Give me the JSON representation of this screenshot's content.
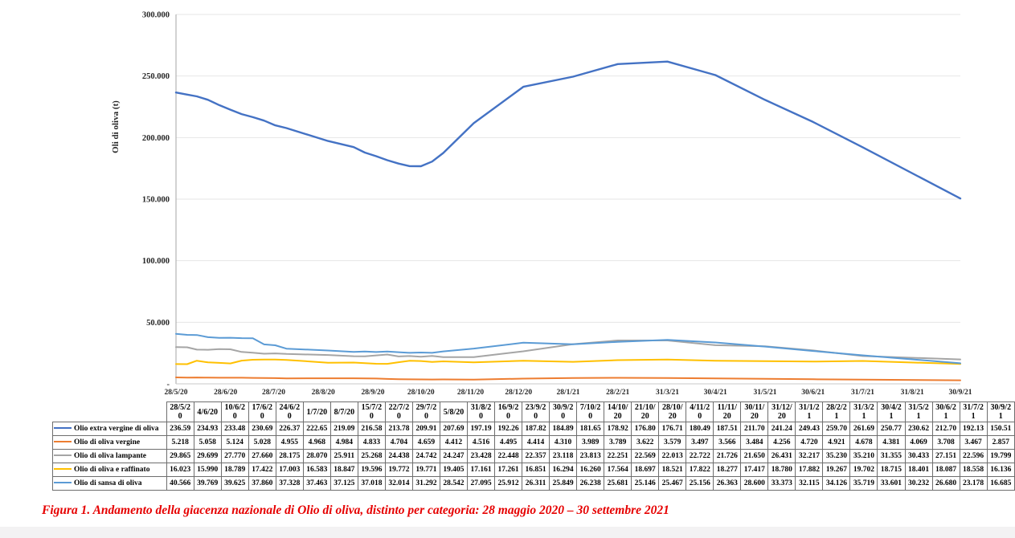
{
  "figure": {
    "caption": "Figura 1. Andamento della giacenza nazionale di Olio di oliva, distinto per categoria: 28 maggio 2020 – 30 settembre 2021"
  },
  "chart_data": {
    "type": "line",
    "title": "",
    "xlabel": "",
    "ylabel": "Oli di oliva (t)",
    "ylim": [
      0,
      300000
    ],
    "grid": "horizontal",
    "legend_position": "table-left",
    "y_ticks": [
      {
        "label": "300.000",
        "value": 300000
      },
      {
        "label": "250.000",
        "value": 250000
      },
      {
        "label": "200.000",
        "value": 200000
      },
      {
        "label": "150.000",
        "value": 150000
      },
      {
        "label": "100.000",
        "value": 100000
      },
      {
        "label": "50.000",
        "value": 50000
      },
      {
        "label": "-",
        "value": 0
      }
    ],
    "x_ticks": [
      {
        "label": "28/5/20",
        "date": "2020-05-28"
      },
      {
        "label": "28/6/20",
        "date": "2020-06-28"
      },
      {
        "label": "28/7/20",
        "date": "2020-07-28"
      },
      {
        "label": "28/8/20",
        "date": "2020-08-28"
      },
      {
        "label": "28/9/20",
        "date": "2020-09-28"
      },
      {
        "label": "28/10/20",
        "date": "2020-10-28"
      },
      {
        "label": "28/11/20",
        "date": "2020-11-28"
      },
      {
        "label": "28/12/20",
        "date": "2020-12-28"
      },
      {
        "label": "28/1/21",
        "date": "2021-01-28"
      },
      {
        "label": "28/2/21",
        "date": "2021-02-28"
      },
      {
        "label": "31/3/21",
        "date": "2021-03-31"
      },
      {
        "label": "30/4/21",
        "date": "2021-04-30"
      },
      {
        "label": "31/5/21",
        "date": "2021-05-31"
      },
      {
        "label": "30/6/21",
        "date": "2021-06-30"
      },
      {
        "label": "31/7/21",
        "date": "2021-07-31"
      },
      {
        "label": "31/8/21",
        "date": "2021-08-31"
      },
      {
        "label": "30/9/21",
        "date": "2021-09-30"
      }
    ],
    "dates": [
      "2020-05-28",
      "2020-06-04",
      "2020-06-10",
      "2020-06-17",
      "2020-06-24",
      "2020-07-01",
      "2020-07-08",
      "2020-07-15",
      "2020-07-22",
      "2020-07-29",
      "2020-08-05",
      "2020-08-31",
      "2020-09-16",
      "2020-09-23",
      "2020-09-30",
      "2020-10-07",
      "2020-10-14",
      "2020-10-21",
      "2020-10-28",
      "2020-11-04",
      "2020-11-11",
      "2020-11-30",
      "2020-12-31",
      "2021-01-31",
      "2021-02-28",
      "2021-03-31",
      "2021-04-30",
      "2021-05-31",
      "2021-06-30",
      "2021-07-31",
      "2021-09-30"
    ],
    "series": [
      {
        "name": "Olio extra vergine di oliva",
        "color": "#4472C4",
        "values": [
          236590,
          234930,
          233480,
          230690,
          226370,
          222650,
          219090,
          216580,
          213780,
          209910,
          207690,
          197190,
          192260,
          187820,
          184890,
          181650,
          178920,
          176800,
          176710,
          180490,
          187510,
          211700,
          241240,
          249430,
          259700,
          261690,
          250770,
          230620,
          212700,
          192130,
          150510
        ]
      },
      {
        "name": "Olio di oliva vergine",
        "color": "#ED7D31",
        "values": [
          5218,
          5058,
          5124,
          5028,
          4955,
          4968,
          4984,
          4833,
          4704,
          4659,
          4412,
          4516,
          4495,
          4414,
          4310,
          3989,
          3789,
          3622,
          3579,
          3497,
          3566,
          3484,
          4256,
          4720,
          4921,
          4678,
          4381,
          4069,
          3708,
          3467,
          2857
        ]
      },
      {
        "name": "Olio di oliva lampante",
        "color": "#A5A5A5",
        "values": [
          29865,
          29699,
          27770,
          27660,
          28175,
          28070,
          25911,
          25268,
          24438,
          24742,
          24247,
          23428,
          22448,
          22357,
          23118,
          23813,
          22251,
          22569,
          22013,
          22722,
          21726,
          21650,
          26431,
          32217,
          35230,
          35210,
          31355,
          30433,
          27151,
          22596,
          19799
        ]
      },
      {
        "name": "Olio di oliva e raffinato",
        "color": "#FFC000",
        "values": [
          16023,
          15990,
          18789,
          17422,
          17003,
          16583,
          18847,
          19596,
          19772,
          19771,
          19405,
          17161,
          17261,
          16851,
          16294,
          16260,
          17564,
          18697,
          18521,
          17822,
          18277,
          17417,
          18780,
          17882,
          19267,
          19702,
          18715,
          18401,
          18087,
          18558,
          16136
        ]
      },
      {
        "name": "Olio di sansa di oliva",
        "color": "#5B9BD5",
        "values": [
          40566,
          39769,
          39625,
          37860,
          37328,
          37463,
          37125,
          37018,
          32014,
          31292,
          28542,
          27095,
          25912,
          26311,
          25849,
          26238,
          25681,
          25146,
          25467,
          25156,
          26363,
          28600,
          33373,
          32115,
          34126,
          35719,
          33601,
          30232,
          26680,
          23178,
          16685
        ]
      }
    ]
  },
  "table": {
    "corner": "",
    "columns": [
      "28/5/20",
      "4/6/20",
      "10/6/20",
      "17/6/20",
      "24/6/20",
      "1/7/20",
      "8/7/20",
      "15/7/20",
      "22/7/20",
      "29/7/20",
      "5/8/20",
      "31/8/20",
      "16/9/20",
      "23/9/20",
      "30/9/20",
      "7/10/20",
      "14/10/20",
      "21/10/20",
      "28/10/20",
      "4/11/20",
      "11/11/20",
      "30/11/20",
      "31/12/20",
      "31/1/21",
      "28/2/21",
      "31/3/21",
      "30/4/21",
      "31/5/21",
      "30/6/21",
      "31/7/21",
      "30/9/21"
    ],
    "rows": [
      {
        "label": "Olio extra vergine di oliva",
        "color": "#4472C4",
        "values": [
          "236.59",
          "234.93",
          "233.48",
          "230.69",
          "226.37",
          "222.65",
          "219.09",
          "216.58",
          "213.78",
          "209.91",
          "207.69",
          "197.19",
          "192.26",
          "187.82",
          "184.89",
          "181.65",
          "178.92",
          "176.80",
          "176.71",
          "180.49",
          "187.51",
          "211.70",
          "241.24",
          "249.43",
          "259.70",
          "261.69",
          "250.77",
          "230.62",
          "212.70",
          "192.13",
          "150.51"
        ]
      },
      {
        "label": "Olio di oliva vergine",
        "color": "#ED7D31",
        "values": [
          "5.218",
          "5.058",
          "5.124",
          "5.028",
          "4.955",
          "4.968",
          "4.984",
          "4.833",
          "4.704",
          "4.659",
          "4.412",
          "4.516",
          "4.495",
          "4.414",
          "4.310",
          "3.989",
          "3.789",
          "3.622",
          "3.579",
          "3.497",
          "3.566",
          "3.484",
          "4.256",
          "4.720",
          "4.921",
          "4.678",
          "4.381",
          "4.069",
          "3.708",
          "3.467",
          "2.857"
        ]
      },
      {
        "label": "Olio di oliva lampante",
        "color": "#A5A5A5",
        "values": [
          "29.865",
          "29.699",
          "27.770",
          "27.660",
          "28.175",
          "28.070",
          "25.911",
          "25.268",
          "24.438",
          "24.742",
          "24.247",
          "23.428",
          "22.448",
          "22.357",
          "23.118",
          "23.813",
          "22.251",
          "22.569",
          "22.013",
          "22.722",
          "21.726",
          "21.650",
          "26.431",
          "32.217",
          "35.230",
          "35.210",
          "31.355",
          "30.433",
          "27.151",
          "22.596",
          "19.799"
        ]
      },
      {
        "label": "Olio di oliva e raffinato",
        "color": "#FFC000",
        "values": [
          "16.023",
          "15.990",
          "18.789",
          "17.422",
          "17.003",
          "16.583",
          "18.847",
          "19.596",
          "19.772",
          "19.771",
          "19.405",
          "17.161",
          "17.261",
          "16.851",
          "16.294",
          "16.260",
          "17.564",
          "18.697",
          "18.521",
          "17.822",
          "18.277",
          "17.417",
          "18.780",
          "17.882",
          "19.267",
          "19.702",
          "18.715",
          "18.401",
          "18.087",
          "18.558",
          "16.136"
        ]
      },
      {
        "label": "Olio di sansa di oliva",
        "color": "#5B9BD5",
        "values": [
          "40.566",
          "39.769",
          "39.625",
          "37.860",
          "37.328",
          "37.463",
          "37.125",
          "37.018",
          "32.014",
          "31.292",
          "28.542",
          "27.095",
          "25.912",
          "26.311",
          "25.849",
          "26.238",
          "25.681",
          "25.146",
          "25.467",
          "25.156",
          "26.363",
          "28.600",
          "33.373",
          "32.115",
          "34.126",
          "35.719",
          "33.601",
          "30.232",
          "26.680",
          "23.178",
          "16.685"
        ]
      }
    ]
  }
}
